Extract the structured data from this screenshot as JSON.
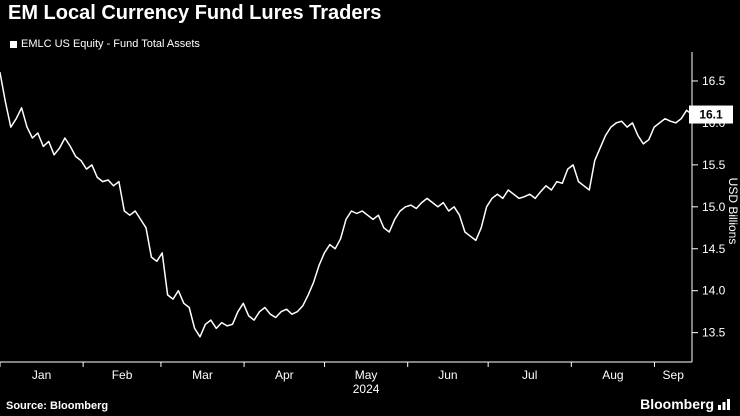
{
  "page": {
    "title": "EM Local Currency Fund Lures Traders",
    "legend_label": "EMLC US Equity - Fund Total Assets",
    "source": "Source: Bloomberg",
    "logo_text": "Bloomberg"
  },
  "colors": {
    "background": "#000000",
    "text": "#ffffff",
    "line": "#ffffff",
    "axis": "#ffffff",
    "badge_bg": "#ffffff",
    "badge_text": "#000000"
  },
  "chart_data": {
    "type": "line",
    "title": "EM Local Currency Fund Lures Traders",
    "series_name": "EMLC US Equity - Fund Total Assets",
    "ylabel": "USD Billions",
    "ylim": [
      13.15,
      16.75
    ],
    "yticks": [
      13.5,
      14.0,
      14.5,
      15.0,
      15.5,
      16.0,
      16.5
    ],
    "months": [
      "Jan",
      "Feb",
      "Mar",
      "Apr",
      "May",
      "Jun",
      "Jul",
      "Aug",
      "Sep"
    ],
    "month_start_days": [
      0,
      31,
      60,
      91,
      121,
      152,
      182,
      213,
      244
    ],
    "total_days": 258,
    "year_label": "2024",
    "year_under_month_index": 4,
    "last_value": 16.1,
    "last_value_label": "16.1",
    "grid": false,
    "legend_position": "top-left",
    "values": [
      16.6,
      16.25,
      15.95,
      16.05,
      16.18,
      15.95,
      15.82,
      15.88,
      15.72,
      15.78,
      15.62,
      15.7,
      15.82,
      15.72,
      15.6,
      15.55,
      15.45,
      15.5,
      15.35,
      15.3,
      15.32,
      15.25,
      15.3,
      14.95,
      14.9,
      14.95,
      14.85,
      14.75,
      14.4,
      14.35,
      14.45,
      13.95,
      13.9,
      14.0,
      13.85,
      13.8,
      13.55,
      13.45,
      13.6,
      13.65,
      13.55,
      13.62,
      13.58,
      13.6,
      13.75,
      13.85,
      13.7,
      13.65,
      13.75,
      13.8,
      13.72,
      13.68,
      13.75,
      13.78,
      13.72,
      13.75,
      13.82,
      13.95,
      14.1,
      14.3,
      14.45,
      14.55,
      14.5,
      14.62,
      14.85,
      14.95,
      14.92,
      14.95,
      14.9,
      14.85,
      14.9,
      14.75,
      14.7,
      14.85,
      14.95,
      15.0,
      15.02,
      14.98,
      15.05,
      15.1,
      15.05,
      15.0,
      15.05,
      14.95,
      15.0,
      14.9,
      14.7,
      14.65,
      14.6,
      14.75,
      15.0,
      15.1,
      15.15,
      15.1,
      15.2,
      15.15,
      15.1,
      15.12,
      15.15,
      15.1,
      15.18,
      15.25,
      15.2,
      15.3,
      15.28,
      15.45,
      15.5,
      15.3,
      15.25,
      15.2,
      15.55,
      15.7,
      15.85,
      15.95,
      16.0,
      16.02,
      15.95,
      16.0,
      15.85,
      15.75,
      15.8,
      15.95,
      16.0,
      16.05,
      16.02,
      16.0,
      16.05,
      16.15,
      16.1
    ]
  }
}
